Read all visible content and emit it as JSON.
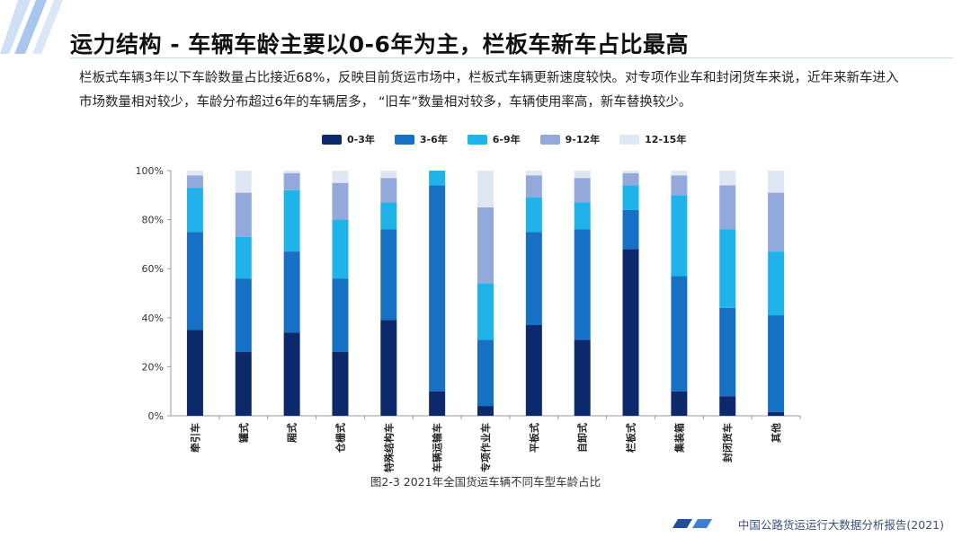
{
  "header": {
    "title": "运力结构 - 车辆车龄主要以0-6年为主，栏板车新车占比最高",
    "intro": "栏板式车辆3年以下车龄数量占比接近68%，反映目前货运市场中，栏板式车辆更新速度较快。对专项作业车和封闭货车来说，近年来新车进入市场数量相对较少，车龄分布超过6年的车辆居多， “旧车”数量相对较多，车辆使用率高，新车替换较少。"
  },
  "chart_data": {
    "type": "bar",
    "stacked": true,
    "categories": [
      "牵引车",
      "罐式",
      "厢式",
      "仓栅式",
      "特殊结构车",
      "车辆运输车",
      "专项作业车",
      "平板式",
      "自卸式",
      "栏板式",
      "集装箱",
      "封闭货车",
      "其他"
    ],
    "series": [
      {
        "name": "0-3年",
        "color": "#0c2a6b",
        "values": [
          35,
          26,
          34,
          26,
          39,
          10,
          4,
          37,
          31,
          68,
          10,
          8,
          1.5
        ]
      },
      {
        "name": "3-6年",
        "color": "#1670c4",
        "values": [
          40,
          30,
          33,
          30,
          37,
          84,
          27,
          38,
          45,
          16,
          47,
          36,
          39.5
        ]
      },
      {
        "name": "6-9年",
        "color": "#1fb3ea",
        "values": [
          18,
          17,
          25,
          24,
          11,
          6,
          23,
          14,
          11,
          10,
          33,
          32,
          26
        ]
      },
      {
        "name": "9-12年",
        "color": "#93a9dc",
        "values": [
          5,
          18,
          7,
          15,
          10,
          0,
          31,
          9,
          10,
          5,
          8,
          18,
          24
        ]
      },
      {
        "name": "12-15年",
        "color": "#dfe6f4",
        "values": [
          2,
          9,
          1,
          5,
          3,
          0,
          15,
          2,
          3,
          1,
          2,
          6,
          9
        ]
      }
    ],
    "yticks": [
      "0%",
      "20%",
      "40%",
      "60%",
      "80%",
      "100%"
    ],
    "ylim": [
      0,
      100
    ],
    "legend_position": "top",
    "caption": "图2-3 2021年全国货运车辆不同车型车龄占比"
  },
  "footer": {
    "text": "中国公路货运运行大数据分析报告(2021)"
  }
}
